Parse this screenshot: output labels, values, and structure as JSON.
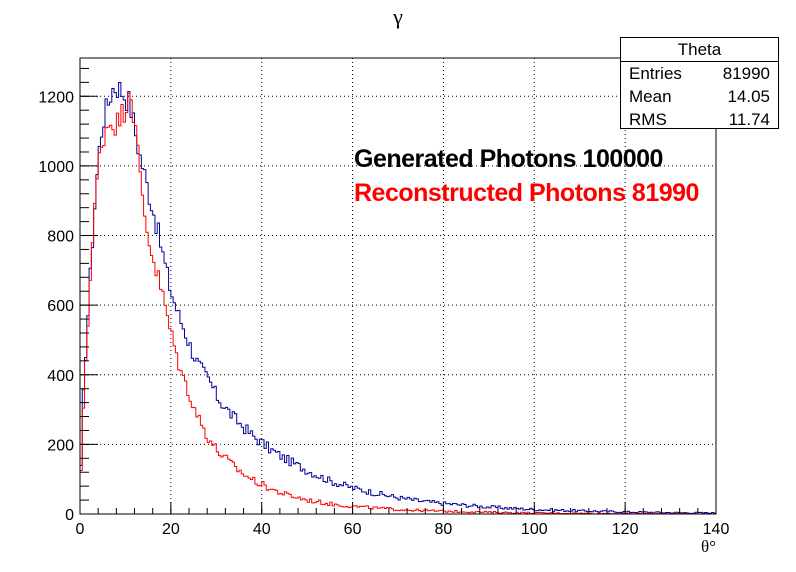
{
  "chart_data": {
    "type": "histogram",
    "title": "γ",
    "xlabel": "θ°",
    "ylabel": "",
    "xlim": [
      0,
      140
    ],
    "ylim": [
      0,
      1310
    ],
    "grid": true,
    "x_ticks": [
      "0",
      "20",
      "40",
      "60",
      "80",
      "100",
      "120",
      "140"
    ],
    "y_ticks": [
      "0",
      "200",
      "400",
      "600",
      "800",
      "1000",
      "1200"
    ],
    "bin_width": 0.5,
    "series": [
      {
        "name": "Generated Photons 100000",
        "color": "#000099",
        "points": [
          [
            0,
            0
          ],
          [
            0.5,
            260
          ],
          [
            1,
            420
          ],
          [
            1.5,
            520
          ],
          [
            2,
            630
          ],
          [
            3,
            840
          ],
          [
            4,
            1020
          ],
          [
            5,
            1130
          ],
          [
            6,
            1170
          ],
          [
            7,
            1220
          ],
          [
            8,
            1230
          ],
          [
            9,
            1220
          ],
          [
            10,
            1200
          ],
          [
            11,
            1180
          ],
          [
            12,
            1110
          ],
          [
            13,
            1040
          ],
          [
            14,
            990
          ],
          [
            15,
            930
          ],
          [
            16,
            880
          ],
          [
            17,
            820
          ],
          [
            18,
            760
          ],
          [
            19,
            700
          ],
          [
            20,
            640
          ],
          [
            21,
            600
          ],
          [
            22,
            560
          ],
          [
            23,
            530
          ],
          [
            24,
            490
          ],
          [
            25,
            460
          ],
          [
            26,
            430
          ],
          [
            27,
            410
          ],
          [
            28,
            390
          ],
          [
            29,
            370
          ],
          [
            30,
            340
          ],
          [
            32,
            305
          ],
          [
            34,
            275
          ],
          [
            36,
            250
          ],
          [
            38,
            225
          ],
          [
            40,
            205
          ],
          [
            42,
            185
          ],
          [
            45,
            160
          ],
          [
            50,
            125
          ],
          [
            55,
            95
          ],
          [
            60,
            75
          ],
          [
            65,
            60
          ],
          [
            70,
            47
          ],
          [
            75,
            37
          ],
          [
            80,
            30
          ],
          [
            90,
            20
          ],
          [
            100,
            13
          ],
          [
            110,
            9
          ],
          [
            120,
            6
          ],
          [
            130,
            4
          ],
          [
            140,
            3
          ]
        ]
      },
      {
        "name": "Reconstructed Photons 81990",
        "color": "#ff0000",
        "points": [
          [
            0,
            0
          ],
          [
            0.5,
            230
          ],
          [
            1,
            390
          ],
          [
            1.5,
            500
          ],
          [
            2,
            620
          ],
          [
            3,
            830
          ],
          [
            4,
            1000
          ],
          [
            5,
            1080
          ],
          [
            6,
            1120
          ],
          [
            7,
            1130
          ],
          [
            8,
            1120
          ],
          [
            9,
            1140
          ],
          [
            10,
            1170
          ],
          [
            11,
            1240
          ],
          [
            12,
            1130
          ],
          [
            13,
            1000
          ],
          [
            14,
            880
          ],
          [
            15,
            800
          ],
          [
            16,
            740
          ],
          [
            17,
            690
          ],
          [
            18,
            640
          ],
          [
            19,
            580
          ],
          [
            20,
            520
          ],
          [
            21,
            470
          ],
          [
            22,
            420
          ],
          [
            23,
            380
          ],
          [
            24,
            350
          ],
          [
            25,
            310
          ],
          [
            26,
            280
          ],
          [
            27,
            250
          ],
          [
            28,
            225
          ],
          [
            29,
            205
          ],
          [
            30,
            185
          ],
          [
            32,
            160
          ],
          [
            34,
            135
          ],
          [
            36,
            115
          ],
          [
            38,
            98
          ],
          [
            40,
            85
          ],
          [
            42,
            72
          ],
          [
            45,
            57
          ],
          [
            50,
            40
          ],
          [
            55,
            29
          ],
          [
            60,
            22
          ],
          [
            65,
            17
          ],
          [
            70,
            13
          ],
          [
            75,
            10
          ],
          [
            80,
            8
          ],
          [
            90,
            5
          ],
          [
            100,
            3
          ],
          [
            110,
            2
          ],
          [
            120,
            1
          ],
          [
            130,
            1
          ],
          [
            140,
            0
          ]
        ]
      }
    ],
    "annotations": [
      {
        "text": "Generated Photons 100000",
        "color": "#000000"
      },
      {
        "text": "Reconstructed Photons 81990",
        "color": "#ff0000"
      }
    ],
    "stats": {
      "name": "Theta",
      "entries_label": "Entries",
      "entries_value": "81990",
      "mean_label": "Mean",
      "mean_value": "14.05",
      "rms_label": "RMS",
      "rms_value": "11.74"
    }
  }
}
